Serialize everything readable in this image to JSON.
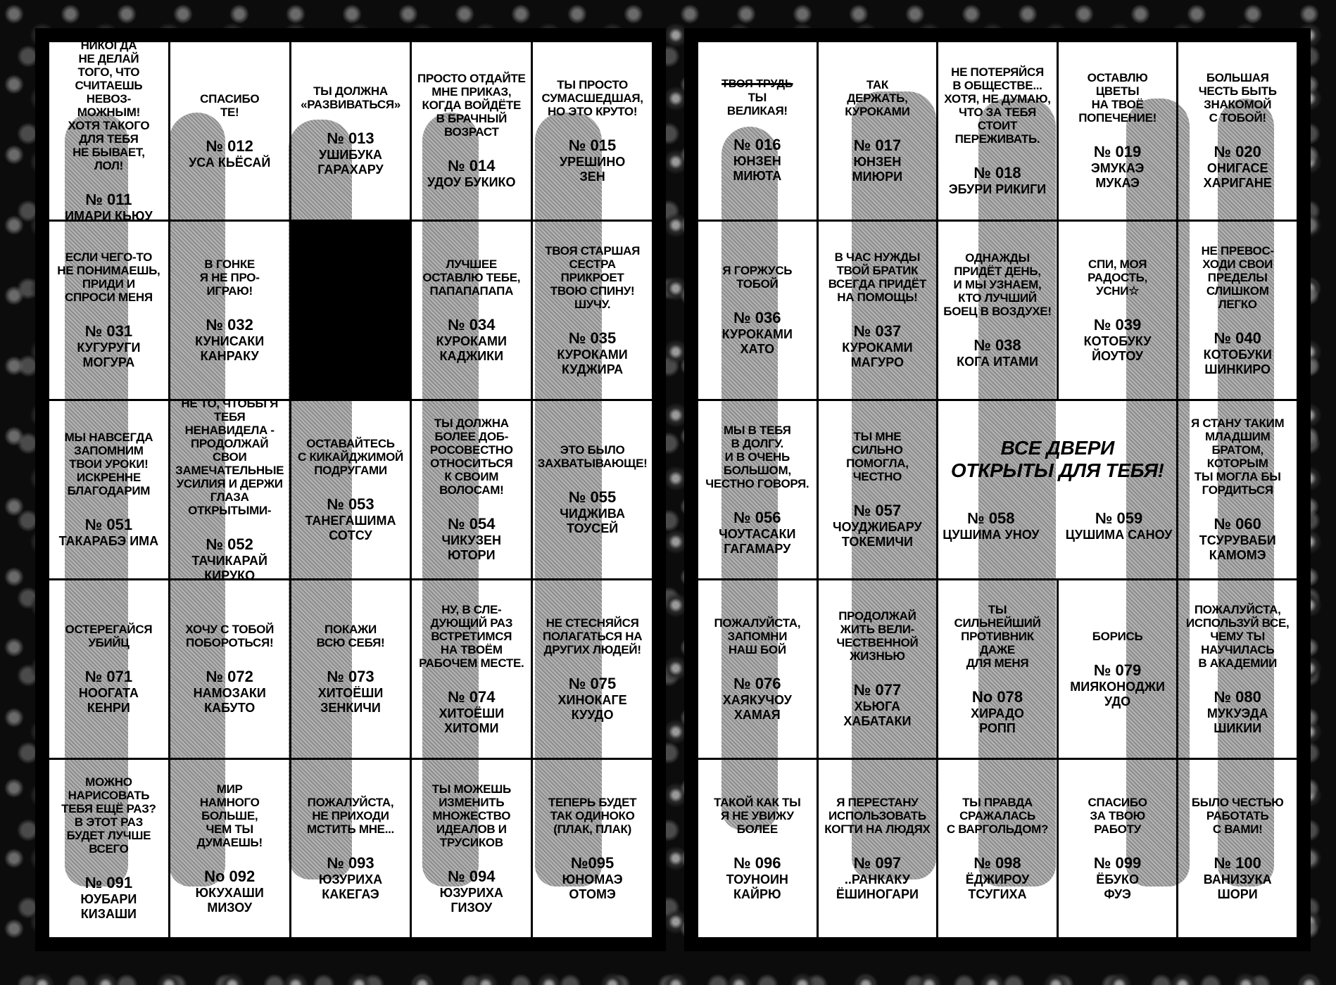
{
  "pages": [
    {
      "side": "left",
      "cells": [
        {
          "msg": "Никогда\nне делай\nтого, что\nсчитаешь\nневоз-\nможным!\nХотя такого\nдля тебя\nне бывает,\nлол!",
          "num": "№ 011",
          "name": "Имари Кьюу"
        },
        {
          "msg": "Спасибо\nТе!",
          "num": "№ 012",
          "name": "Уса Кьёсай"
        },
        {
          "msg": "Ты должна\n«развиваться»",
          "num": "№ 013",
          "name": "Ушибука\nГарахару"
        },
        {
          "msg": "Просто отдайте\nмне приказ,\nкогда войдёте\nв брачный\nвозраст",
          "num": "№ 014",
          "name": "Удоу Букико"
        },
        {
          "msg": "Ты просто\nсумасшедшая,\nно это круто!",
          "num": "№ 015",
          "name": "Урешино\nЗен"
        },
        {
          "msg": "Если чего-то\nне понимаешь,\nприди и\nспроси меня",
          "num": "№ 031",
          "name": "Кугуруги\nМогура"
        },
        {
          "msg": "В гонке\nя не про-\nиграю!",
          "num": "№ 032",
          "name": "Кунисаки\nКанраку"
        },
        {
          "blank": true
        },
        {
          "msg": "Лучшее\nоставлю тебе,\nпапапапапа",
          "num": "№ 034",
          "name": "Куроками\nКаджики"
        },
        {
          "msg": "Твоя старшая\nсестра прикроет\nтвою спину!\nШучу.",
          "num": "№ 035",
          "name": "Куроками\nКуджира"
        },
        {
          "msg": "Мы навсегда\nзапомним\nтвои уроки!\nИскренне\nблагодарим",
          "num": "№ 051",
          "name": "Такарабэ Има"
        },
        {
          "msg": "Не то, чтобы я\nтебя ненавидела -\nпродолжай свои\nзамечательные\nусилия и держи\nглаза открытыми-",
          "num": "№ 052",
          "name": "Тачикарай\nКируко"
        },
        {
          "msg": "Оставайтесь\nс Кикайджимой\nподругами",
          "num": "№ 053",
          "name": "Танегашима\nСотсу"
        },
        {
          "msg": "Ты должна\nболее доб-\nросовестно\nотноситься\nк своим\nволосам!",
          "num": "№ 054",
          "name": "Чикузен\nЮтори"
        },
        {
          "msg": "Это было\nзахватывающе!",
          "num": "№ 055",
          "name": "Чиджива\nТоусей"
        },
        {
          "msg": "Остерегайся\nубийц",
          "num": "№ 071",
          "name": "Ноогата\nКенри"
        },
        {
          "msg": "Хочу с тобой\nпобороться!",
          "num": "№ 072",
          "name": "Намозаки\nКабуто"
        },
        {
          "msg": "Покажи\nвсю себя!",
          "num": "№ 073",
          "name": "Хитоёши\nЗенкичи"
        },
        {
          "msg": "Ну, в сле-\nдующий раз\nвстретимся\nна твоём\nрабочем месте.",
          "num": "№ 074",
          "name": "Хитоёши\nХитоми"
        },
        {
          "msg": "Не стесняйся\nполагаться на\nдругих людей!",
          "num": "№ 075",
          "name": "Хинокаге\nКуудо"
        },
        {
          "msg": "Можно\nнарисовать\nтебя ещё раз?\nВ этот раз\nбудет лучше\nвсего",
          "num": "№ 091",
          "name": "Юубари\nКизаши"
        },
        {
          "msg": "Мир\nнамного\nбольше,\nчем ты\nдумаешь!",
          "num": "No 092",
          "name": "Юкухаши\nМизоу"
        },
        {
          "msg": "Пожалуйста,\nне приходи\nмстить мне...",
          "num": "№ 093",
          "name": "Юзуриха\nКакегаэ"
        },
        {
          "msg": "Ты можешь\nизменить\nмножество\nидеалов и\nтрусиков",
          "num": "№ 094",
          "name": "Юзуриха\nГизоу"
        },
        {
          "msg": "Теперь будет\nтак одиноко\n(плак, плак)",
          "num": "№095",
          "name": "Юномаэ\nОтомэ"
        }
      ]
    },
    {
      "side": "right",
      "cells": [
        {
          "struck": "Твоя трудь",
          "msg": "Ты\nвеликая!",
          "num": "№ 016",
          "name": "Юнзен\nМиюта"
        },
        {
          "msg": "Так\nдержать,\nКуроками",
          "num": "№ 017",
          "name": "Юнзен\nМиюри"
        },
        {
          "msg": "Не потеряйся\nв обществе...\nХотя, не думаю,\nчто за тебя стоит\nпереживать.",
          "num": "№ 018",
          "name": "Эбури Рикиги"
        },
        {
          "msg": "Оставлю\nцветы\nна твоё\nпопечение!",
          "num": "№ 019",
          "name": "Эмукаэ\nМукаэ"
        },
        {
          "msg": "Большая\nчесть быть\nзнакомой\nс тобой!",
          "num": "№ 020",
          "name": "Онигасе\nХаригане"
        },
        {
          "msg": "Я горжусь\nтобой",
          "num": "№ 036",
          "name": "Куроками\nХато"
        },
        {
          "msg": "В час нужды\nтвой братик\nвсегда придёт\nна помощь!",
          "num": "№ 037",
          "name": "Куроками\nМагуро"
        },
        {
          "msg": "Однажды\nпридёт день,\nи мы узнаем,\nкто лучший\nбоец в воздухе!",
          "num": "№ 038",
          "name": "Кога Итами"
        },
        {
          "msg": "Спи, моя\nрадость,\nусни☆",
          "num": "№ 039",
          "name": "Котобуку\nЙоутоу"
        },
        {
          "msg": "Не превос-\nходи свои\nпределы\nслишком\nлегко",
          "num": "№ 040",
          "name": "Котобуки\nШинкиро"
        },
        {
          "msg": "Мы в тебя\nв долгу.\nИ в очень\nбольшом,\nчестно говоря.",
          "num": "№ 056",
          "name": "Чоутасаки\nГагамару"
        },
        {
          "msg": "Ты мне\nсильно\nпомогла,\nчестно",
          "num": "№ 057",
          "name": "Чоуджибару\nТокемичи"
        },
        {
          "merged": true,
          "msg": "Все двери\nоткрыты для тебя!",
          "num": "№ 058",
          "name": "Цушима Уноу",
          "num2": "№ 059",
          "name2": "Цушима Саноу"
        },
        {
          "msg": "Я стану таким\nмладшим братом,\nкоторым\nты могла бы\nгордиться",
          "num": "№ 060",
          "name": "Тсуруваби\nКамомэ"
        },
        {
          "msg": "Пожалуйста,\nзапомни\nнаш бой",
          "num": "№ 076",
          "name": "Хаякучоу\nХамая"
        },
        {
          "msg": "Продолжай\nжить вели-\nчественной\nжизнью",
          "num": "№ 077",
          "name": "Хьюга\nХабатаки"
        },
        {
          "msg": "Ты\nсильнейший\nпротивник\nдаже\nдля меня",
          "num": "No 078",
          "name": "Хирадо\nРопп"
        },
        {
          "msg": "Борись",
          "num": "№ 079",
          "name": "Мияконоджи\nУдо"
        },
        {
          "msg": "Пожалуйста,\nиспользуй все,\nчему ты\nнаучилась\nв академии",
          "num": "№ 080",
          "name": "Мукуэда Шикии"
        },
        {
          "msg": "Такой как ты\nя не увижу\nболее",
          "num": "№ 096",
          "name": "Тоуноин\nКайрю"
        },
        {
          "msg": "Я перестану\nиспользовать\nкогти на людях",
          "num": "№ 097",
          "name": "..Ранкаку\nЁшиногари"
        },
        {
          "msg": "Ты правда\nсражалась\nс Варгольдом?",
          "num": "№ 098",
          "name": "Ёджироу\nТсугиха"
        },
        {
          "msg": "Спасибо\nза твою\nработу",
          "num": "№ 099",
          "name": "Ёбуко\nФуэ"
        },
        {
          "msg": "Было честью\nработать\nс вами!",
          "num": "№ 100",
          "name": "Ванизука\nШори"
        }
      ]
    }
  ]
}
